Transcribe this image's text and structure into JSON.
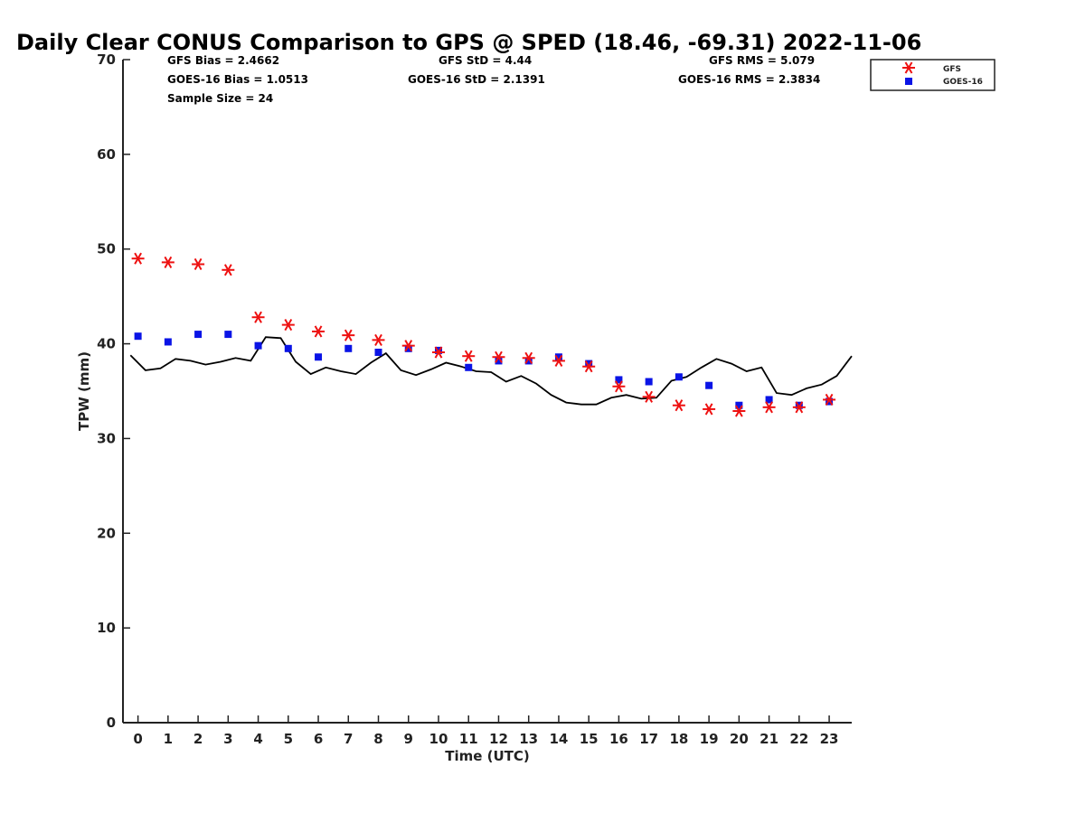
{
  "chart_data": {
    "type": "scatter",
    "title": "Daily Clear CONUS Comparison to GPS @ SPED (18.46, -69.31) 2022-11-06",
    "xlabel": "Time (UTC)",
    "ylabel": "TPW (mm)",
    "xlim": [
      -0.5,
      23.75
    ],
    "ylim": [
      0,
      70
    ],
    "xticks": [
      0,
      1,
      2,
      3,
      4,
      5,
      6,
      7,
      8,
      9,
      10,
      11,
      12,
      13,
      14,
      15,
      16,
      17,
      18,
      19,
      20,
      21,
      22,
      23
    ],
    "yticks": [
      0,
      10,
      20,
      30,
      40,
      50,
      60,
      70
    ],
    "grid": false,
    "legend_position": "top-right",
    "stats": {
      "gfs_bias": "GFS Bias = 2.4662",
      "goes_bias": "GOES-16 Bias = 1.0513",
      "sample_size": "Sample Size = 24",
      "gfs_std": "GFS StD = 4.44",
      "goes_std": "GOES-16 StD = 2.1391",
      "gfs_rms": "GFS RMS = 5.079",
      "goes_rms": "GOES-16 RMS = 2.3834"
    },
    "series": [
      {
        "name": "GFS",
        "marker": "asterisk",
        "color": "#ee1111",
        "x": [
          0,
          1,
          2,
          3,
          4,
          5,
          6,
          7,
          8,
          9,
          10,
          11,
          12,
          13,
          14,
          15,
          16,
          17,
          18,
          19,
          20,
          21,
          22,
          23
        ],
        "y": [
          49.0,
          48.6,
          48.4,
          47.8,
          42.8,
          42.0,
          41.3,
          40.9,
          40.4,
          39.8,
          39.1,
          38.7,
          38.6,
          38.5,
          38.2,
          37.6,
          35.5,
          34.4,
          33.5,
          33.1,
          32.9,
          33.3,
          33.3,
          34.1
        ]
      },
      {
        "name": "GOES-16",
        "marker": "square",
        "color": "#0a14e6",
        "x": [
          0,
          1,
          2,
          3,
          4,
          5,
          6,
          7,
          8,
          9,
          10,
          11,
          12,
          13,
          14,
          15,
          16,
          17,
          18,
          19,
          20,
          21,
          22,
          23
        ],
        "y": [
          40.8,
          40.2,
          41.0,
          41.0,
          39.8,
          39.5,
          38.6,
          39.5,
          39.1,
          39.5,
          39.3,
          37.5,
          38.2,
          38.2,
          38.6,
          37.9,
          36.2,
          36.0,
          36.5,
          35.6,
          33.5,
          34.1,
          33.5,
          33.9
        ]
      },
      {
        "name": "",
        "marker": "line",
        "color": "#000000",
        "x": [
          -0.25,
          0.25,
          0.75,
          1.25,
          1.75,
          2.25,
          2.75,
          3.25,
          3.75,
          4.25,
          4.75,
          5.25,
          5.75,
          6.25,
          6.75,
          7.25,
          7.75,
          8.25,
          8.75,
          9.25,
          9.75,
          10.25,
          10.75,
          11.25,
          11.75,
          12.25,
          12.75,
          13.25,
          13.75,
          14.25,
          14.75,
          15.25,
          15.75,
          16.25,
          16.75,
          17.25,
          17.75,
          18.25,
          18.75,
          19.25,
          19.75,
          20.25,
          20.75,
          21.25,
          21.75,
          22.25,
          22.75,
          23.25,
          23.75
        ],
        "y": [
          38.8,
          37.2,
          37.4,
          38.4,
          38.2,
          37.8,
          38.1,
          38.5,
          38.2,
          40.7,
          40.6,
          38.1,
          36.8,
          37.5,
          37.1,
          36.8,
          38.0,
          39.0,
          37.2,
          36.7,
          37.3,
          38.0,
          37.6,
          37.1,
          37.0,
          36.0,
          36.6,
          35.8,
          34.6,
          33.8,
          33.6,
          33.6,
          34.3,
          34.6,
          34.2,
          34.3,
          36.1,
          36.5,
          37.5,
          38.4,
          37.9,
          37.1,
          37.5,
          34.8,
          34.6,
          35.3,
          35.7,
          36.6,
          38.7
        ]
      }
    ]
  }
}
